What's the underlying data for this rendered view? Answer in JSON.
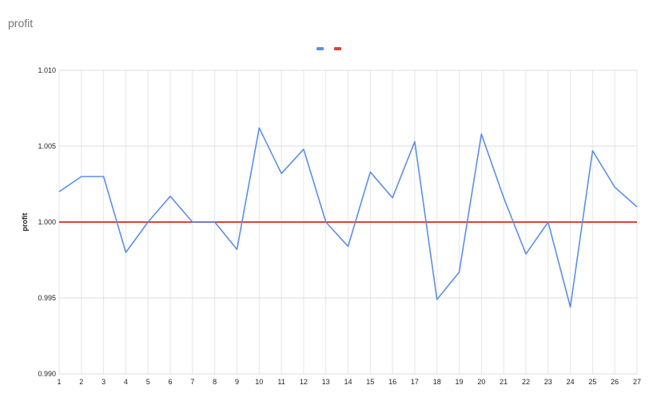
{
  "chart_data": {
    "type": "line",
    "title": "profit",
    "ylabel": "profit",
    "xlabel": "",
    "x": [
      1,
      2,
      3,
      4,
      5,
      6,
      7,
      8,
      9,
      10,
      11,
      12,
      13,
      14,
      15,
      16,
      17,
      18,
      19,
      20,
      21,
      22,
      23,
      24,
      25,
      26,
      27
    ],
    "ylim": [
      0.99,
      1.01
    ],
    "yticks": [
      "0.990",
      "0.995",
      "1.000",
      "1.005",
      "1.010"
    ],
    "grid": true,
    "legend": "top-center",
    "series": [
      {
        "color": "#5B8FE6",
        "values": [
          1.002,
          1.003,
          1.003,
          0.998,
          1.0,
          1.0017,
          1.0,
          1.0,
          0.9982,
          1.0062,
          1.0032,
          1.0048,
          1.0,
          0.9984,
          1.0033,
          1.0016,
          1.0053,
          0.9949,
          0.9967,
          1.0058,
          1.0016,
          0.9979,
          1.0,
          0.9944,
          1.0047,
          1.0023,
          1.001
        ]
      },
      {
        "color": "#D9443A",
        "values": [
          1,
          1,
          1,
          1,
          1,
          1,
          1,
          1,
          1,
          1,
          1,
          1,
          1,
          1,
          1,
          1,
          1,
          1,
          1,
          1,
          1,
          1,
          1,
          1,
          1,
          1,
          1
        ]
      }
    ]
  }
}
